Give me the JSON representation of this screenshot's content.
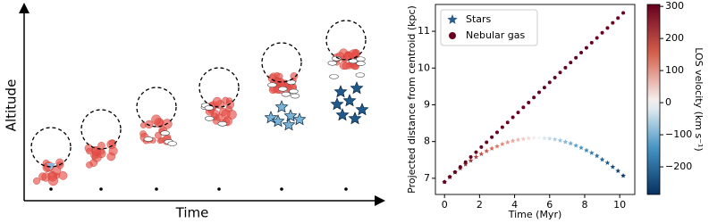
{
  "schematic": {
    "y_label": "Altitude",
    "x_label": "Time"
  },
  "chart_data": {
    "type": "scatter",
    "x_label": "Time (Myr)",
    "y_label": "Projected distance from centroid (kpc)",
    "colorbar_label": "LOS velocity (km s⁻¹)",
    "x": [
      0,
      0.3,
      0.6,
      0.9,
      1.2,
      1.5,
      1.8,
      2.1,
      2.4,
      2.7,
      3.0,
      3.3,
      3.6,
      3.9,
      4.2,
      4.5,
      4.8,
      5.1,
      5.4,
      5.7,
      6.0,
      6.3,
      6.6,
      6.9,
      7.2,
      7.5,
      7.8,
      8.1,
      8.4,
      8.7,
      9.0,
      9.3,
      9.6,
      9.9,
      10.2
    ],
    "series": [
      {
        "name": "Stars",
        "marker": "star",
        "color": "#2c5d8f",
        "values": [
          6.9,
          7.03,
          7.16,
          7.27,
          7.38,
          7.48,
          7.58,
          7.66,
          7.74,
          7.81,
          7.87,
          7.93,
          7.98,
          8.02,
          8.05,
          8.07,
          8.09,
          8.1,
          8.1,
          8.09,
          8.08,
          8.06,
          8.03,
          7.99,
          7.95,
          7.89,
          7.83,
          7.76,
          7.69,
          7.61,
          7.51,
          7.42,
          7.31,
          7.2,
          7.07
        ],
        "los_velocity": [
          300,
          283,
          266,
          249,
          232,
          215,
          198,
          181,
          164,
          147,
          130,
          113,
          96,
          79,
          62,
          45,
          28,
          11,
          -6,
          -23,
          -40,
          -57,
          -74,
          -91,
          -108,
          -125,
          -142,
          -159,
          -176,
          -193,
          -209,
          -226,
          -243,
          -260,
          -277
        ]
      },
      {
        "name": "Nebular gas",
        "marker": "circle",
        "color": "#67001f",
        "values": [
          6.9,
          7.04,
          7.17,
          7.31,
          7.44,
          7.58,
          7.71,
          7.85,
          7.98,
          8.12,
          8.25,
          8.39,
          8.52,
          8.66,
          8.79,
          8.93,
          9.06,
          9.2,
          9.34,
          9.47,
          9.61,
          9.74,
          9.88,
          10.01,
          10.15,
          10.28,
          10.42,
          10.55,
          10.69,
          10.82,
          10.96,
          11.09,
          11.23,
          11.36,
          11.5
        ]
      }
    ],
    "xlim": [
      -0.52,
      10.86
    ],
    "ylim": [
      6.56,
      11.73
    ],
    "xticks": [
      0,
      2,
      4,
      6,
      8,
      10
    ],
    "yticks": [
      7,
      8,
      9,
      10,
      11
    ],
    "clim": [
      -286,
      306
    ],
    "colormap": "RdBu_r",
    "cticks": [
      {
        "value": -200,
        "label": "−200"
      },
      {
        "value": -100,
        "label": "−100"
      },
      0,
      100,
      200,
      300
    ],
    "legend": "upper left"
  }
}
